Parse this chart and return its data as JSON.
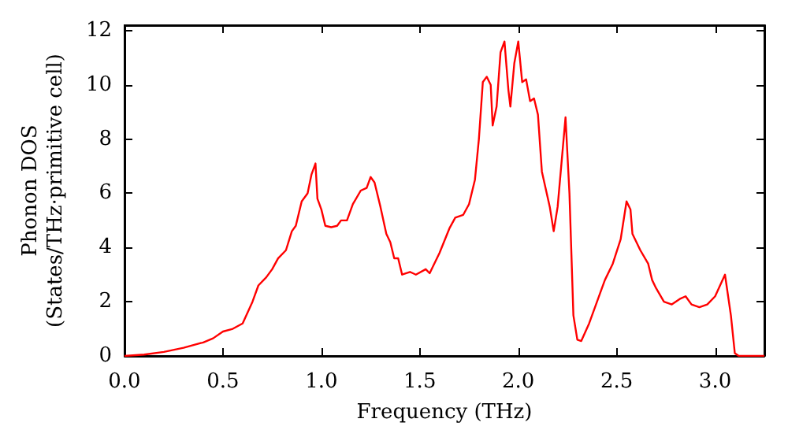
{
  "chart_data": {
    "type": "line",
    "xlabel": "Frequency (THz)",
    "ylabel": "Phonon DOS\n(States/THz·primitive cell)",
    "x": [
      0,
      0.1,
      0.2,
      0.3,
      0.4,
      0.45,
      0.5,
      0.55,
      0.6,
      0.65,
      0.68,
      0.72,
      0.75,
      0.78,
      0.82,
      0.85,
      0.87,
      0.9,
      0.93,
      0.95,
      0.97,
      0.98,
      1.0,
      1.02,
      1.05,
      1.08,
      1.1,
      1.13,
      1.16,
      1.2,
      1.23,
      1.25,
      1.27,
      1.3,
      1.33,
      1.35,
      1.37,
      1.39,
      1.41,
      1.45,
      1.48,
      1.53,
      1.55,
      1.6,
      1.65,
      1.68,
      1.72,
      1.75,
      1.78,
      1.8,
      1.82,
      1.84,
      1.86,
      1.87,
      1.89,
      1.91,
      1.93,
      1.95,
      1.96,
      1.98,
      2.0,
      2.02,
      2.04,
      2.06,
      2.08,
      2.1,
      2.12,
      2.16,
      2.18,
      2.2,
      2.24,
      2.26,
      2.28,
      2.3,
      2.32,
      2.36,
      2.4,
      2.44,
      2.48,
      2.52,
      2.55,
      2.57,
      2.58,
      2.62,
      2.66,
      2.68,
      2.7,
      2.74,
      2.78,
      2.82,
      2.85,
      2.88,
      2.92,
      2.96,
      3.0,
      3.05,
      3.08,
      3.1,
      3.12,
      3.25
    ],
    "series": [
      {
        "color": "#ff0000",
        "values": [
          0,
          0.05,
          0.15,
          0.3,
          0.5,
          0.65,
          0.9,
          1.0,
          1.2,
          2.0,
          2.6,
          2.9,
          3.2,
          3.6,
          3.9,
          4.6,
          4.8,
          5.7,
          6.0,
          6.7,
          7.1,
          5.8,
          5.4,
          4.8,
          4.75,
          4.8,
          5.0,
          5.0,
          5.6,
          6.1,
          6.2,
          6.6,
          6.4,
          5.5,
          4.5,
          4.2,
          3.6,
          3.6,
          3.0,
          3.1,
          3.0,
          3.2,
          3.05,
          3.8,
          4.7,
          5.1,
          5.2,
          5.6,
          6.5,
          8.0,
          10.1,
          10.3,
          10.0,
          8.5,
          9.2,
          11.2,
          11.6,
          9.8,
          9.2,
          10.8,
          11.6,
          10.1,
          10.2,
          9.4,
          9.5,
          8.9,
          6.8,
          5.5,
          4.6,
          5.5,
          8.8,
          6.0,
          1.5,
          0.6,
          0.55,
          1.2,
          2.0,
          2.8,
          3.4,
          4.3,
          5.7,
          5.4,
          4.5,
          3.9,
          3.4,
          2.8,
          2.5,
          2.0,
          1.9,
          2.1,
          2.2,
          1.9,
          1.8,
          1.9,
          2.2,
          3.0,
          1.5,
          0.1,
          0,
          0
        ]
      }
    ],
    "xlim": [
      0,
      3.25
    ],
    "xticks": [
      {
        "value": 0,
        "label": "0.0"
      },
      {
        "value": 0.5,
        "label": "0.5"
      },
      {
        "value": 1,
        "label": "1.0"
      },
      {
        "value": 1.5,
        "label": "1.5"
      },
      {
        "value": 2,
        "label": "2.0"
      },
      {
        "value": 2.5,
        "label": "2.5"
      },
      {
        "value": 3,
        "label": "3.0"
      }
    ],
    "ylim": [
      0,
      12.2
    ],
    "yticks": [
      0,
      2,
      4,
      6,
      8,
      10,
      12
    ],
    "grid": false,
    "marker": "none",
    "line_style": "solid"
  }
}
